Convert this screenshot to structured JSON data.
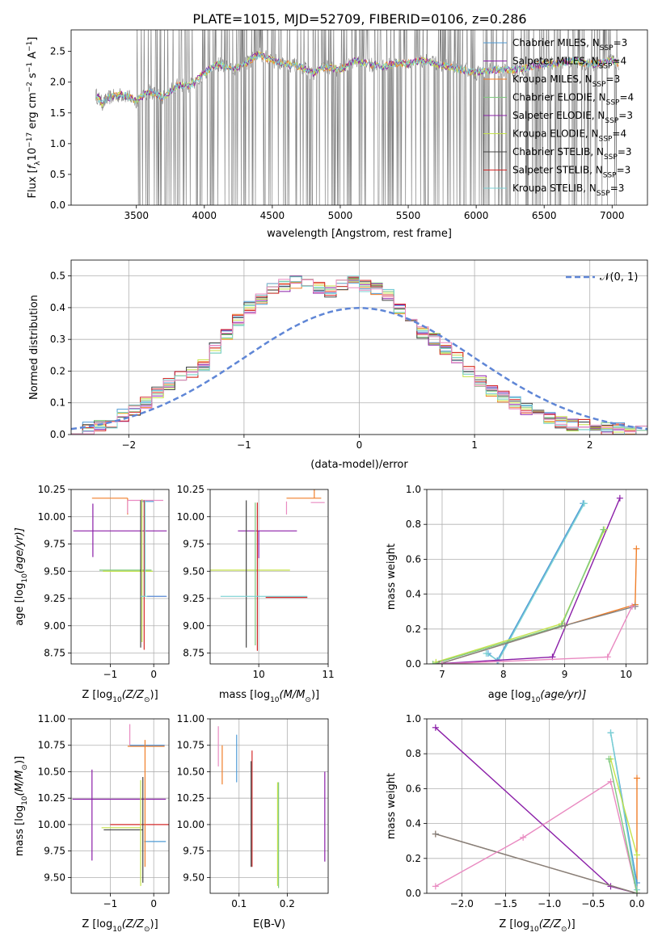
{
  "title": "PLATE=1015, MJD=52709, FIBERID=0106, z=0.286",
  "colors": {
    "grey": "#808080",
    "blue": "#4f9bd6",
    "orange": "#f07f2a",
    "green": "#7fc97f",
    "purple": "#8b1fa8",
    "yellow": "#c5e34a",
    "dark": "#444444",
    "red": "#d42a2a",
    "cyan": "#7ad1d3",
    "pink": "#e98ac1",
    "steel": "#5f86d6"
  },
  "chart_data": [
    {
      "type": "line",
      "title": "PLATE=1015, MJD=52709, FIBERID=0106, z=0.286",
      "xlabel": "wavelength [Angstrom, rest frame]",
      "ylabel_parts": [
        "Flux [",
        "f",
        "λ",
        "10",
        "−17",
        " erg cm",
        "−2",
        " s",
        "−1",
        " A",
        "−1",
        "]"
      ],
      "xlim": [
        3020,
        7260
      ],
      "ylim": [
        0,
        2.85
      ],
      "xticks": [
        3500,
        4000,
        4500,
        5000,
        5500,
        6000,
        6500,
        7000
      ],
      "yticks": [
        0.0,
        0.5,
        1.0,
        1.5,
        2.0,
        2.5
      ],
      "legend": [
        {
          "name": "Chabrier MILES, N",
          "sub": "SSP",
          "tail": "=3",
          "color": "#4f9bd6"
        },
        {
          "name": "Salpeter MILES, N",
          "sub": "SSP",
          "tail": "=4",
          "color": "#8b1fa8"
        },
        {
          "name": "Kroupa MILES, N",
          "sub": "SSP",
          "tail": "=3",
          "color": "#f07f2a"
        },
        {
          "name": "Chabrier ELODIE, N",
          "sub": "SSP",
          "tail": "=4",
          "color": "#7fc97f"
        },
        {
          "name": "Salpeter ELODIE, N",
          "sub": "SSP",
          "tail": "=3",
          "color": "#8b1fa8"
        },
        {
          "name": "Kroupa ELODIE, N",
          "sub": "SSP",
          "tail": "=4",
          "color": "#c5e34a"
        },
        {
          "name": "Chabrier STELIB, N",
          "sub": "SSP",
          "tail": "=3",
          "color": "#444444"
        },
        {
          "name": "Salpeter STELIB, N",
          "sub": "SSP",
          "tail": "=3",
          "color": "#d42a2a"
        },
        {
          "name": "Kroupa STELIB, N",
          "sub": "SSP",
          "tail": "=3",
          "color": "#7ad1d3"
        }
      ],
      "continuum": {
        "x": [
          3200,
          3250,
          3300,
          3400,
          3500,
          3600,
          3700,
          3800,
          3900,
          4000,
          4100,
          4200,
          4300,
          4400,
          4500,
          4600,
          4700,
          4800,
          4900,
          5000,
          5100,
          5200,
          5300,
          5400,
          5500,
          5600,
          5700,
          5800,
          5900,
          6000,
          6100,
          6200,
          6300,
          6400,
          6500,
          6600,
          6700,
          6800,
          6900,
          7000,
          7050
        ],
        "y": [
          1.8,
          1.65,
          1.75,
          1.8,
          1.7,
          1.85,
          1.75,
          1.95,
          1.95,
          2.15,
          2.3,
          2.2,
          2.3,
          2.45,
          2.35,
          2.3,
          2.25,
          2.15,
          2.25,
          2.2,
          2.35,
          2.3,
          2.25,
          2.3,
          2.3,
          2.35,
          2.3,
          2.25,
          2.2,
          2.15,
          2.2,
          2.2,
          2.2,
          2.25,
          2.3,
          2.3,
          2.35,
          2.3,
          2.3,
          2.35,
          2.3
        ]
      },
      "noise_range": [
        3500,
        7050
      ]
    },
    {
      "type": "line",
      "xlabel": "(data-model)/error",
      "ylabel": "Normed distribution",
      "xlim": [
        -2.5,
        2.5
      ],
      "ylim": [
        0,
        0.55
      ],
      "xticks": [
        -2,
        -1,
        0,
        1,
        2
      ],
      "yticks": [
        0.0,
        0.1,
        0.2,
        0.3,
        0.4,
        0.5
      ],
      "legend": [
        {
          "name": "𝒩(0, 1)",
          "color": "#5f86d6"
        }
      ],
      "hist_bins": [
        -2.5,
        2.5,
        50
      ],
      "hist_values": [
        0.02,
        0.02,
        0.03,
        0.04,
        0.06,
        0.08,
        0.1,
        0.13,
        0.16,
        0.18,
        0.2,
        0.22,
        0.27,
        0.32,
        0.36,
        0.4,
        0.43,
        0.46,
        0.47,
        0.48,
        0.47,
        0.46,
        0.45,
        0.47,
        0.48,
        0.47,
        0.46,
        0.44,
        0.4,
        0.36,
        0.32,
        0.3,
        0.27,
        0.24,
        0.2,
        0.17,
        0.14,
        0.12,
        0.1,
        0.08,
        0.06,
        0.05,
        0.04,
        0.03,
        0.03,
        0.02,
        0.02,
        0.02,
        0.01,
        0.01
      ]
    },
    {
      "type": "scatter",
      "xlabel_parts": [
        "Z [log",
        "10",
        "(Z/Z",
        "⊙",
        ")]"
      ],
      "ylabel_parts": [
        "age  [log",
        "10",
        "(age/yr)]"
      ],
      "xlim": [
        -1.9,
        0.35
      ],
      "ylim": [
        8.65,
        10.25
      ],
      "xticks": [
        -1,
        0
      ],
      "yticks": [
        8.75,
        9.0,
        9.25,
        9.5,
        9.75,
        10.0,
        10.25
      ],
      "items": [
        {
          "x": -0.6,
          "y": 10.17,
          "xerr": [
            0.82,
            0.0
          ],
          "yerr": [
            0.15,
            0.0
          ],
          "color": "#f07f2a"
        },
        {
          "x": -0.6,
          "y": 10.15,
          "xerr": [
            0.0,
            0.82
          ],
          "yerr": [
            0.12,
            0.0
          ],
          "color": "#e98ac1"
        },
        {
          "x": 0.0,
          "y": 10.14,
          "xerr": [
            0.28,
            0.0
          ],
          "yerr": [
            0.0,
            0.0
          ],
          "color": "#4f9bd6"
        },
        {
          "x": -1.4,
          "y": 9.87,
          "xerr": [
            0.45,
            1.7
          ],
          "yerr": [
            0.24,
            0.25
          ],
          "color": "#8b1fa8"
        },
        {
          "x": -0.3,
          "y": 9.51,
          "xerr": [
            0.95,
            0.25
          ],
          "yerr": [
            0.0,
            0.0
          ],
          "color": "#7fc97f"
        },
        {
          "x": -0.27,
          "y": 9.5,
          "xerr": [
            0.9,
            0.25
          ],
          "yerr": [
            0.65,
            0.66
          ],
          "color": "#c5e34a"
        },
        {
          "x": -0.3,
          "y": 9.5,
          "xerr": [
            0.0,
            0.0
          ],
          "yerr": [
            0.7,
            0.65
          ],
          "color": "#444444"
        },
        {
          "x": -0.22,
          "y": 9.5,
          "xerr": [
            0.0,
            0.0
          ],
          "yerr": [
            0.72,
            0.65
          ],
          "color": "#d42a2a"
        },
        {
          "x": -0.2,
          "y": 9.27,
          "xerr": [
            0.1,
            0.48
          ],
          "yerr": [
            0.0,
            0.88
          ],
          "color": "#7ad1d3"
        },
        {
          "x": 0.05,
          "y": 9.27,
          "xerr": [
            0.2,
            0.25
          ],
          "yerr": [
            0.0,
            0.0
          ],
          "color": "#5f86d6"
        }
      ]
    },
    {
      "type": "scatter",
      "xlabel_parts": [
        "mass [log",
        "10",
        "(M/M",
        "⊙",
        ")]"
      ],
      "xlim": [
        9.3,
        11.0
      ],
      "ylim": [
        8.65,
        10.25
      ],
      "xticks": [
        10,
        11
      ],
      "yticks": [
        8.75,
        9.0,
        9.25,
        9.5,
        9.75,
        10.0,
        10.25
      ],
      "items": [
        {
          "x": 10.75,
          "y": 10.17,
          "xerr": [
            0.35,
            0.15
          ],
          "yerr": [
            0.0,
            0.0
          ],
          "color": "#f07f2a"
        },
        {
          "x": 10.75,
          "y": 10.13,
          "xerr": [
            0.0,
            0.2
          ],
          "yerr": [
            0.0,
            0.0
          ],
          "color": "#e98ac1"
        },
        {
          "x": 10.4,
          "y": 10.14,
          "xerr": [
            0.0,
            0.0
          ],
          "yerr": [
            0.12,
            0.0
          ],
          "color": "#e98ac1"
        },
        {
          "x": 10.8,
          "y": 10.17,
          "xerr": [
            0.0,
            0.0
          ],
          "yerr": [
            0.0,
            0.25
          ],
          "color": "#f07f2a"
        },
        {
          "x": 10.0,
          "y": 9.87,
          "xerr": [
            0.3,
            0.55
          ],
          "yerr": [
            0.25,
            0.0
          ],
          "color": "#8b1fa8"
        },
        {
          "x": 9.95,
          "y": 9.51,
          "xerr": [
            0.65,
            0.5
          ],
          "yerr": [
            0.0,
            0.0
          ],
          "color": "#c5e34a"
        },
        {
          "x": 9.95,
          "y": 9.5,
          "xerr": [
            0.0,
            0.0
          ],
          "yerr": [
            0.68,
            0.63
          ],
          "color": "#7fc97f"
        },
        {
          "x": 9.82,
          "y": 9.5,
          "xerr": [
            0.0,
            0.0
          ],
          "yerr": [
            0.7,
            0.65
          ],
          "color": "#444444"
        },
        {
          "x": 9.98,
          "y": 9.5,
          "xerr": [
            0.0,
            0.0
          ],
          "yerr": [
            0.73,
            0.63
          ],
          "color": "#d42a2a"
        },
        {
          "x": 10.0,
          "y": 9.27,
          "xerr": [
            0.55,
            0.7
          ],
          "yerr": [
            0.0,
            0.0
          ],
          "color": "#7ad1d3"
        },
        {
          "x": 10.1,
          "y": 9.26,
          "xerr": [
            0.0,
            0.6
          ],
          "yerr": [
            0.0,
            0.0
          ],
          "color": "#d42a2a"
        }
      ]
    },
    {
      "type": "line",
      "xlabel_parts": [
        "age  [log",
        "10",
        "(age/yr)]"
      ],
      "ylabel": "mass weight",
      "xlim": [
        6.75,
        10.35
      ],
      "ylim": [
        0,
        1.0
      ],
      "xticks": [
        7,
        8,
        9,
        10
      ],
      "yticks": [
        0.0,
        0.2,
        0.4,
        0.6,
        0.8,
        1.0
      ],
      "series": [
        {
          "color": "#4f9bd6",
          "x": [
            7.75,
            7.9,
            9.3
          ],
          "y": [
            0.06,
            0.02,
            0.92
          ]
        },
        {
          "color": "#7ad1d3",
          "x": [
            7.72,
            7.92,
            9.32
          ],
          "y": [
            0.06,
            0.02,
            0.92
          ]
        },
        {
          "color": "#8b1fa8",
          "x": [
            6.9,
            8.8,
            9.9
          ],
          "y": [
            0.0,
            0.04,
            0.95
          ]
        },
        {
          "color": "#c5e34a",
          "x": [
            6.9,
            8.95,
            9.65
          ],
          "y": [
            0.01,
            0.23,
            0.77
          ]
        },
        {
          "color": "#7fc97f",
          "x": [
            6.85,
            8.95,
            9.63
          ],
          "y": [
            0.0,
            0.22,
            0.77
          ]
        },
        {
          "color": "#f07f2a",
          "x": [
            6.95,
            9.0,
            10.15,
            10.17
          ],
          "y": [
            0.0,
            0.22,
            0.34,
            0.66
          ]
        },
        {
          "color": "#808080",
          "x": [
            6.95,
            9.0,
            10.15
          ],
          "y": [
            0.0,
            0.22,
            0.33
          ]
        },
        {
          "color": "#e98ac1",
          "x": [
            7.0,
            9.7,
            10.1
          ],
          "y": [
            0.0,
            0.04,
            0.33
          ]
        }
      ]
    },
    {
      "type": "scatter",
      "xlabel_parts": [
        "Z [log",
        "10",
        "(Z/Z",
        "⊙",
        ")]"
      ],
      "ylabel_parts": [
        "mass [log",
        "10",
        "(M/M",
        "⊙",
        ")]"
      ],
      "xlim": [
        -1.9,
        0.35
      ],
      "ylim": [
        9.35,
        11.0
      ],
      "xticks": [
        -1,
        0
      ],
      "yticks": [
        9.5,
        9.75,
        10.0,
        10.25,
        10.5,
        10.75,
        11.0
      ],
      "items": [
        {
          "x": -0.55,
          "y": 10.75,
          "xerr": [
            0.0,
            0.8
          ],
          "yerr": [
            0.0,
            0.2
          ],
          "color": "#e98ac1"
        },
        {
          "x": -0.3,
          "y": 10.74,
          "xerr": [
            0.3,
            0.55
          ],
          "yerr": [
            0.0,
            0.0
          ],
          "color": "#f07f2a"
        },
        {
          "x": -0.3,
          "y": 10.75,
          "xerr": [
            0.25,
            0.55
          ],
          "yerr": [
            0.0,
            0.0
          ],
          "color": "#4f9bd6"
        },
        {
          "x": -1.42,
          "y": 10.24,
          "xerr": [
            0.45,
            1.7
          ],
          "yerr": [
            0.58,
            0.28
          ],
          "color": "#8b1fa8"
        },
        {
          "x": -0.3,
          "y": 10.0,
          "xerr": [
            0.7,
            0.7
          ],
          "yerr": [
            0.0,
            0.0
          ],
          "color": "#d42a2a"
        },
        {
          "x": -0.25,
          "y": 9.95,
          "xerr": [
            0.9,
            0.0
          ],
          "yerr": [
            0.5,
            0.5
          ],
          "color": "#444444"
        },
        {
          "x": -0.3,
          "y": 9.97,
          "xerr": [
            0.9,
            0.0
          ],
          "yerr": [
            0.55,
            0.45
          ],
          "color": "#c5e34a"
        },
        {
          "x": -0.22,
          "y": 9.84,
          "xerr": [
            0.0,
            0.5
          ],
          "yerr": [
            0.0,
            0.0
          ],
          "color": "#4f9bd6"
        },
        {
          "x": -0.2,
          "y": 10.2,
          "xerr": [
            0.0,
            0.0
          ],
          "yerr": [
            0.6,
            0.6
          ],
          "color": "#f07f2a"
        }
      ]
    },
    {
      "type": "scatter",
      "xlabel": "E(B-V)",
      "xlim": [
        0.04,
        0.285
      ],
      "ylim": [
        9.35,
        11.0
      ],
      "xticks": [
        0.1,
        0.2
      ],
      "yticks": [
        9.5,
        9.75,
        10.0,
        10.25,
        10.5,
        10.75,
        11.0
      ],
      "items": [
        {
          "x": 0.057,
          "y": 10.75,
          "xerr": [
            0.0,
            0.0
          ],
          "yerr": [
            0.2,
            0.18
          ],
          "color": "#e98ac1"
        },
        {
          "x": 0.065,
          "y": 10.6,
          "xerr": [
            0.0,
            0.0
          ],
          "yerr": [
            0.22,
            0.15
          ],
          "color": "#f07f2a"
        },
        {
          "x": 0.095,
          "y": 10.6,
          "xerr": [
            0.0,
            0.0
          ],
          "yerr": [
            0.2,
            0.25
          ],
          "color": "#4f9bd6"
        },
        {
          "x": 0.127,
          "y": 10.1,
          "xerr": [
            0.0,
            0.0
          ],
          "yerr": [
            0.5,
            0.6
          ],
          "color": "#d42a2a"
        },
        {
          "x": 0.125,
          "y": 10.05,
          "xerr": [
            0.0,
            0.0
          ],
          "yerr": [
            0.45,
            0.55
          ],
          "color": "#444444"
        },
        {
          "x": 0.18,
          "y": 9.9,
          "xerr": [
            0.0,
            0.0
          ],
          "yerr": [
            0.48,
            0.5
          ],
          "color": "#c5e34a"
        },
        {
          "x": 0.182,
          "y": 9.9,
          "xerr": [
            0.0,
            0.0
          ],
          "yerr": [
            0.5,
            0.5
          ],
          "color": "#7fc97f"
        },
        {
          "x": 0.278,
          "y": 10.1,
          "xerr": [
            0.0,
            0.0
          ],
          "yerr": [
            0.45,
            0.4
          ],
          "color": "#8b1fa8"
        }
      ]
    },
    {
      "type": "line",
      "xlabel_parts": [
        "Z [log",
        "10",
        "(Z/Z",
        "⊙",
        ")]"
      ],
      "ylabel": "mass weight",
      "xlim": [
        -2.4,
        0.12
      ],
      "ylim": [
        0,
        1.0
      ],
      "xticks": [
        -2.0,
        -1.5,
        -1.0,
        -0.5,
        0.0
      ],
      "yticks": [
        0.0,
        0.2,
        0.4,
        0.6,
        0.8,
        1.0
      ],
      "series": [
        {
          "color": "#8b1fa8",
          "x": [
            -2.3,
            -0.3,
            0.0
          ],
          "y": [
            0.95,
            0.04,
            0.0
          ]
        },
        {
          "color": "#f07f2a",
          "x": [
            -2.3,
            0.0,
            0.0
          ],
          "y": [
            0.34,
            0.0,
            0.66
          ]
        },
        {
          "color": "#808080",
          "x": [
            -2.3,
            0.0
          ],
          "y": [
            0.34,
            0.0
          ]
        },
        {
          "color": "#e98ac1",
          "x": [
            -2.3,
            -1.3,
            -0.3,
            0.0
          ],
          "y": [
            0.04,
            0.32,
            0.64,
            0.0
          ]
        },
        {
          "color": "#4f9bd6",
          "x": [
            -0.3,
            0.0
          ],
          "y": [
            0.92,
            0.06
          ]
        },
        {
          "color": "#7ad1d3",
          "x": [
            -0.3,
            0.0
          ],
          "y": [
            0.92,
            0.02
          ]
        },
        {
          "color": "#c5e34a",
          "x": [
            -0.3,
            0.0
          ],
          "y": [
            0.77,
            0.22
          ]
        },
        {
          "color": "#7fc97f",
          "x": [
            -0.32,
            0.0
          ],
          "y": [
            0.77,
            0.0
          ]
        }
      ]
    }
  ]
}
